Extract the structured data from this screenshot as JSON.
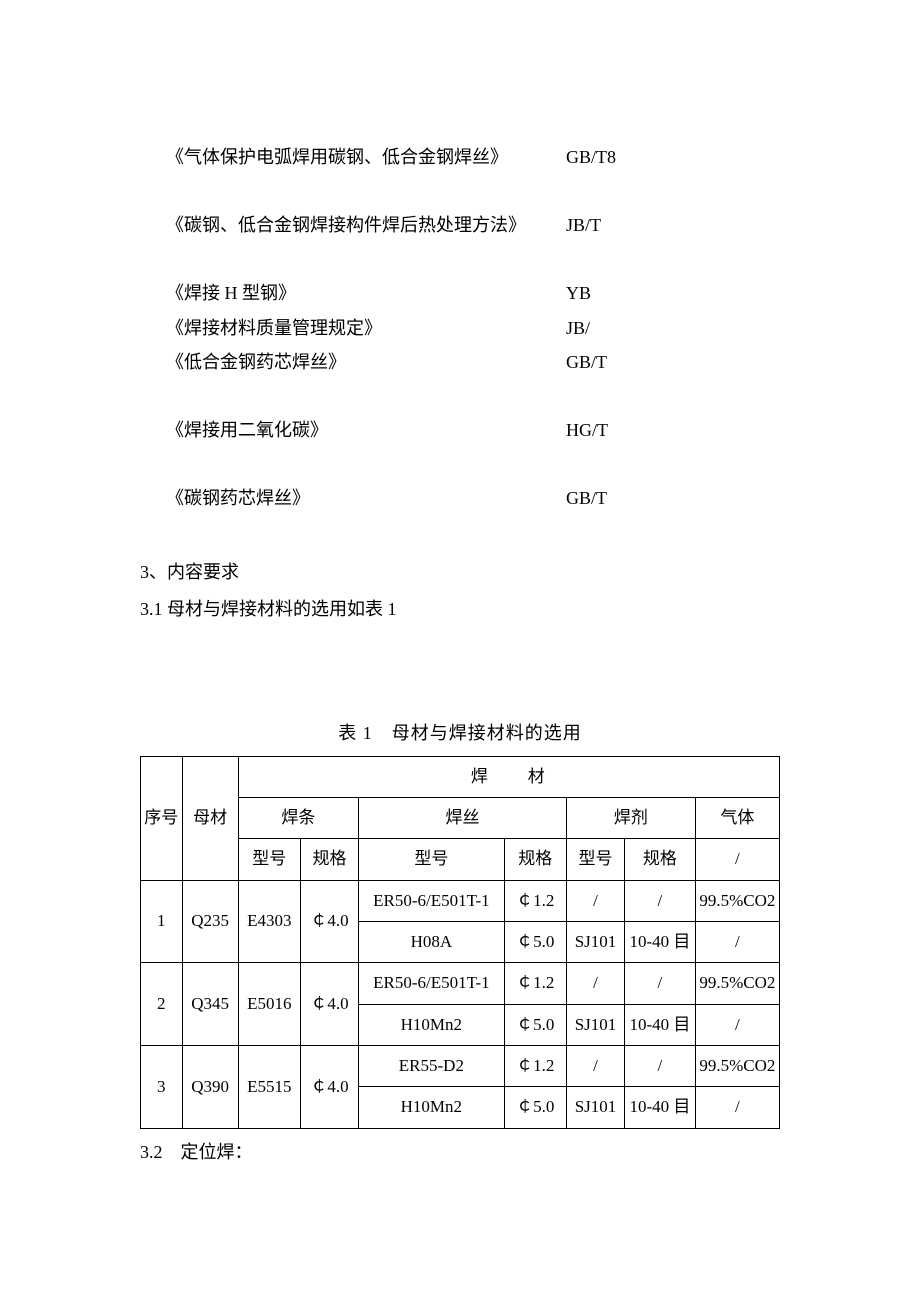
{
  "standards": [
    {
      "title": "《气体保护电弧焊用碳钢、低合金钢焊丝》",
      "code": "GB/T8",
      "gap_after": "gap-small"
    },
    {
      "title": "《碳钢、低合金钢焊接构件焊后热处理方法》",
      "code": "JB/T",
      "gap_after": "gap-small"
    },
    {
      "title": "《焊接 H 型钢》",
      "code": "YB",
      "gap_after": ""
    },
    {
      "title": "《焊接材料质量管理规定》",
      "code": "JB/",
      "gap_after": ""
    },
    {
      "title": "《低合金钢药芯焊丝》",
      "code": "GB/T",
      "gap_after": "gap-med"
    },
    {
      "title": "《焊接用二氧化碳》",
      "code": "HG/T",
      "gap_after": "gap-med"
    },
    {
      "title": "《碳钢药芯焊丝》",
      "code": "GB/T",
      "gap_after": ""
    }
  ],
  "section": {
    "header": "3、内容要求",
    "sub": "3.1 母材与焊接材料的选用如表 1"
  },
  "table": {
    "caption": "表 1　母材与焊接材料的选用",
    "headers": {
      "seq": "序号",
      "base": "母材",
      "hc_group": "焊材",
      "rod": "焊条",
      "wire": "焊丝",
      "flux": "焊剂",
      "gas": "气体",
      "model": "型号",
      "spec": "规格",
      "slash": "/"
    },
    "rows": [
      {
        "seq": "1",
        "base": "Q235",
        "rod_model": "E4303",
        "rod_spec": "￠4.0",
        "sub": [
          {
            "wire_model": "ER50-6/E501T-1",
            "wire_spec": "￠1.2",
            "flux_model": "/",
            "flux_spec": "/",
            "gas": "99.5%CO2"
          },
          {
            "wire_model": "H08A",
            "wire_spec": "￠5.0",
            "flux_model": "SJ101",
            "flux_spec": "10-40 目",
            "gas": "/"
          }
        ]
      },
      {
        "seq": "2",
        "base": "Q345",
        "rod_model": "E5016",
        "rod_spec": "￠4.0",
        "sub": [
          {
            "wire_model": "ER50-6/E501T-1",
            "wire_spec": "￠1.2",
            "flux_model": "/",
            "flux_spec": "/",
            "gas": "99.5%CO2"
          },
          {
            "wire_model": "H10Mn2",
            "wire_spec": "￠5.0",
            "flux_model": "SJ101",
            "flux_spec": "10-40 目",
            "gas": "/"
          }
        ]
      },
      {
        "seq": "3",
        "base": "Q390",
        "rod_model": "E5515",
        "rod_spec": "￠4.0",
        "sub": [
          {
            "wire_model": "ER55-D2",
            "wire_spec": "￠1.2",
            "flux_model": "/",
            "flux_spec": "/",
            "gas": "99.5%CO2"
          },
          {
            "wire_model": "H10Mn2",
            "wire_spec": "￠5.0",
            "flux_model": "SJ101",
            "flux_spec": "10-40 目",
            "gas": "/"
          }
        ]
      }
    ]
  },
  "footer": "3.2　定位焊："
}
